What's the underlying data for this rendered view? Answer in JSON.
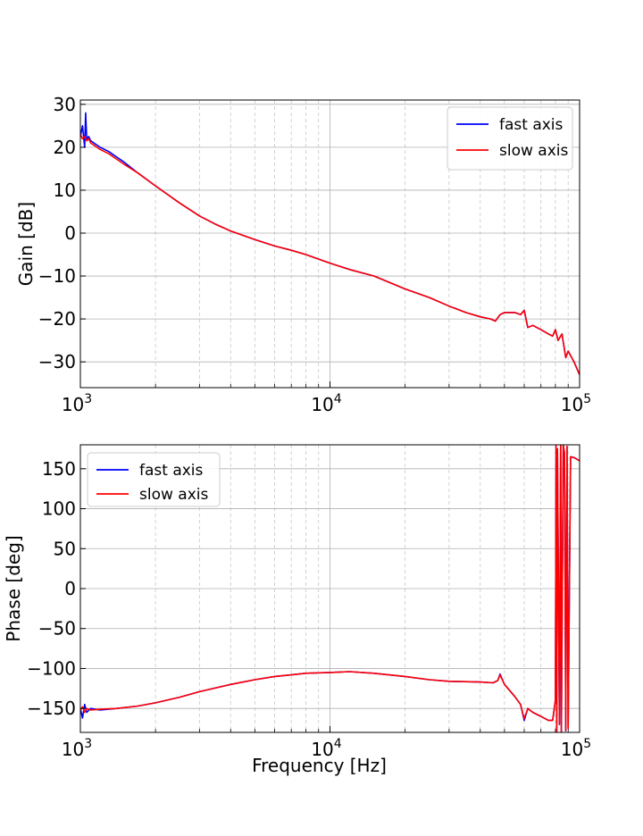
{
  "chart_data": [
    {
      "type": "line",
      "ylabel": "Gain [dB]",
      "xlabel": "",
      "xscale": "log",
      "xlim": [
        1000,
        100000
      ],
      "ylim": [
        -36,
        31
      ],
      "yticks": [
        30,
        20,
        10,
        0,
        -10,
        -20,
        -30
      ],
      "ytick_labels": [
        "30",
        "20",
        "10",
        "0",
        "−10",
        "−20",
        "−30"
      ],
      "xticks": [
        1000,
        10000,
        100000
      ],
      "xtick_base": "10",
      "xtick_exponents": [
        "3",
        "4",
        "5"
      ],
      "grid": true,
      "legend": "top-right",
      "series": [
        {
          "name": "fast axis",
          "color": "#0000ff",
          "x": [
            1000,
            1020,
            1040,
            1050,
            1060,
            1080,
            1100,
            1200,
            1300,
            1500,
            1700,
            2000,
            2500,
            3000,
            3500,
            4000,
            5000,
            6000,
            7000,
            8000,
            10000,
            12000,
            15000,
            20000,
            25000,
            30000,
            35000,
            40000,
            44000,
            46000,
            48000,
            50000,
            55000,
            58000,
            60000,
            62000,
            65000,
            70000,
            75000,
            78000,
            80000,
            82000,
            85000,
            88000,
            90000,
            95000,
            100000
          ],
          "y": [
            22.5,
            25,
            20,
            28,
            22,
            22.5,
            21.5,
            20,
            19,
            16.5,
            14,
            11,
            7,
            4,
            2,
            0.5,
            -1.5,
            -3,
            -4,
            -5,
            -7,
            -8.5,
            -10,
            -13,
            -15,
            -17,
            -18.5,
            -19.5,
            -20,
            -20.5,
            -19,
            -18.5,
            -18.5,
            -19,
            -18,
            -22,
            -21.5,
            -22.5,
            -23.5,
            -24,
            -22.5,
            -25,
            -23.5,
            -29,
            -27.5,
            -30,
            -33
          ]
        },
        {
          "name": "slow axis",
          "color": "#ff0000",
          "x": [
            1000,
            1020,
            1040,
            1060,
            1080,
            1100,
            1200,
            1300,
            1500,
            1700,
            2000,
            2500,
            3000,
            3500,
            4000,
            5000,
            6000,
            7000,
            8000,
            10000,
            12000,
            15000,
            20000,
            25000,
            30000,
            35000,
            40000,
            44000,
            46000,
            48000,
            50000,
            55000,
            58000,
            60000,
            62000,
            65000,
            70000,
            75000,
            78000,
            80000,
            82000,
            85000,
            88000,
            90000,
            95000,
            100000
          ],
          "y": [
            23,
            22,
            22.5,
            21.5,
            22,
            21,
            19.5,
            18.5,
            16,
            14,
            11,
            7,
            4,
            2,
            0.5,
            -1.5,
            -3,
            -4,
            -5,
            -7,
            -8.5,
            -10,
            -13,
            -15,
            -17,
            -18.5,
            -19.5,
            -20,
            -20.5,
            -19,
            -18.5,
            -18.5,
            -19,
            -18,
            -22,
            -21.5,
            -22.5,
            -23.5,
            -24,
            -22.5,
            -25,
            -23.5,
            -29,
            -27.5,
            -30,
            -33
          ]
        }
      ]
    },
    {
      "type": "line",
      "ylabel": "Phase [deg]",
      "xlabel": "Frequency [Hz]",
      "xscale": "log",
      "xlim": [
        1000,
        100000
      ],
      "ylim": [
        -180,
        180
      ],
      "yticks": [
        150,
        100,
        50,
        0,
        -50,
        -100,
        -150
      ],
      "ytick_labels": [
        "150",
        "100",
        "50",
        "0",
        "−50",
        "−100",
        "−150"
      ],
      "xticks": [
        1000,
        10000,
        100000
      ],
      "xtick_base": "10",
      "xtick_exponents": [
        "3",
        "4",
        "5"
      ],
      "grid": true,
      "legend": "top-left",
      "series": [
        {
          "name": "fast axis",
          "color": "#0000ff",
          "x": [
            1000,
            1020,
            1040,
            1060,
            1100,
            1200,
            1400,
            1700,
            2000,
            2500,
            3000,
            4000,
            5000,
            6000,
            7000,
            8000,
            10000,
            12000,
            15000,
            20000,
            25000,
            30000,
            40000,
            45000,
            47000,
            48000,
            50000,
            55000,
            58000,
            60000,
            62000,
            65000,
            70000,
            75000,
            78000,
            80000,
            80500,
            81000,
            81500,
            83000,
            84000,
            84500,
            86000,
            87000,
            88000,
            89000,
            90000,
            92000,
            95000,
            100000
          ],
          "y": [
            -150,
            -162,
            -145,
            -155,
            -150,
            -152,
            -150,
            -147,
            -143,
            -136,
            -129,
            -120,
            -114,
            -110,
            -108,
            -106,
            -105,
            -104,
            -106,
            -110,
            -114,
            -116,
            -117,
            -118,
            -115,
            -107,
            -120,
            -135,
            -145,
            -165,
            -150,
            -155,
            -160,
            -165,
            -165,
            -140,
            180,
            -180,
            175,
            -170,
            180,
            -180,
            180,
            170,
            -178,
            178,
            -175,
            165,
            164,
            160
          ]
        },
        {
          "name": "slow axis",
          "color": "#ff0000",
          "x": [
            1000,
            1020,
            1040,
            1060,
            1100,
            1200,
            1400,
            1700,
            2000,
            2500,
            3000,
            4000,
            5000,
            6000,
            7000,
            8000,
            10000,
            12000,
            15000,
            20000,
            25000,
            30000,
            40000,
            45000,
            47000,
            48000,
            50000,
            55000,
            58000,
            60000,
            62000,
            65000,
            70000,
            75000,
            78000,
            80000,
            80500,
            81000,
            81500,
            83000,
            84000,
            84500,
            86000,
            87000,
            88000,
            89000,
            90000,
            92000,
            95000,
            100000
          ],
          "y": [
            -152,
            -148,
            -155,
            -150,
            -152,
            -151,
            -150,
            -147,
            -143,
            -136,
            -129,
            -120,
            -114,
            -110,
            -108,
            -106,
            -105,
            -104,
            -106,
            -110,
            -114,
            -116,
            -117,
            -118,
            -115,
            -108,
            -120,
            -135,
            -145,
            -163,
            -150,
            -155,
            -160,
            -165,
            -165,
            -140,
            180,
            -180,
            175,
            -170,
            180,
            -180,
            180,
            170,
            -178,
            178,
            -175,
            165,
            164,
            160
          ]
        }
      ]
    }
  ]
}
